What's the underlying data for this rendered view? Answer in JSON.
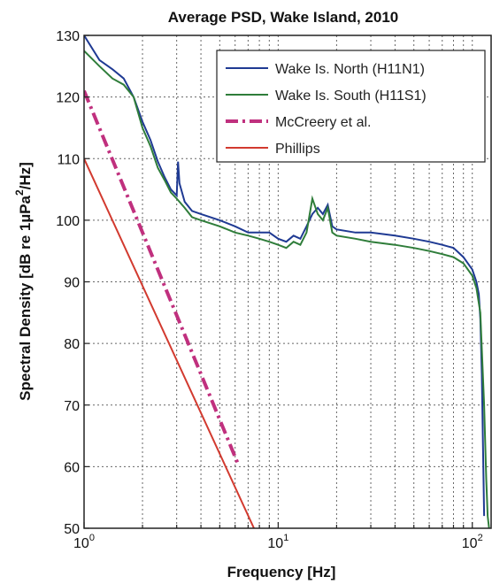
{
  "chart_data": {
    "type": "line",
    "title": "Average PSD, Wake Island, 2010",
    "xlabel": "Frequency [Hz]",
    "ylabel": "Spectral Density [dB re 1µPa²/Hz]",
    "xscale": "log",
    "xlim": [
      1,
      125
    ],
    "ylim": [
      50,
      130
    ],
    "x_ticks": [
      {
        "value": 1,
        "label": "10",
        "exp": "0"
      },
      {
        "value": 10,
        "label": "10",
        "exp": "1"
      },
      {
        "value": 100,
        "label": "10",
        "exp": "2"
      }
    ],
    "y_ticks": [
      50,
      60,
      70,
      80,
      90,
      100,
      110,
      120,
      130
    ],
    "grid": true,
    "legend_position": "top-right",
    "series": [
      {
        "name": "Wake Is. North (H11N1)",
        "color": "#1f3a93",
        "style": "solid",
        "x": [
          1.0,
          1.2,
          1.4,
          1.6,
          1.8,
          2.0,
          2.2,
          2.4,
          2.6,
          2.8,
          3.0,
          3.05,
          3.1,
          3.3,
          3.6,
          4.0,
          5.0,
          6.0,
          7.0,
          8.0,
          9.0,
          10.0,
          11.0,
          12.0,
          13.0,
          14.0,
          15.0,
          16.0,
          17.0,
          18.0,
          19.0,
          20.0,
          25.0,
          30.0,
          40.0,
          50.0,
          60.0,
          70.0,
          80.0,
          90.0,
          100.0,
          105.0,
          108.0,
          110.0,
          112.0,
          115.0
        ],
        "y": [
          130.0,
          126.0,
          124.5,
          123.0,
          120.0,
          116.0,
          113.0,
          109.5,
          107.0,
          105.0,
          104.0,
          109.5,
          106.0,
          103.0,
          101.5,
          101.0,
          100.0,
          99.0,
          98.0,
          98.0,
          98.0,
          97.0,
          96.5,
          97.5,
          97.0,
          99.0,
          101.0,
          102.0,
          101.0,
          102.5,
          99.0,
          98.5,
          98.0,
          98.0,
          97.5,
          97.0,
          96.5,
          96.0,
          95.5,
          94.0,
          92.0,
          90.0,
          88.0,
          84.0,
          75.0,
          52.0
        ]
      },
      {
        "name": "Wake Is. South (H11S1)",
        "color": "#2f7d3a",
        "style": "solid",
        "x": [
          1.0,
          1.2,
          1.4,
          1.6,
          1.8,
          2.0,
          2.2,
          2.4,
          2.6,
          2.8,
          3.0,
          3.3,
          3.6,
          4.0,
          5.0,
          6.0,
          7.0,
          8.0,
          9.0,
          10.0,
          11.0,
          12.0,
          13.0,
          14.0,
          15.0,
          16.0,
          17.0,
          18.0,
          19.0,
          20.0,
          25.0,
          30.0,
          40.0,
          50.0,
          60.0,
          70.0,
          80.0,
          90.0,
          100.0,
          105.0,
          110.0,
          115.0,
          118.0,
          120.0,
          122.0
        ],
        "y": [
          127.5,
          125.0,
          123.0,
          122.0,
          120.0,
          115.0,
          112.0,
          108.5,
          106.5,
          104.5,
          103.5,
          102.0,
          100.5,
          100.0,
          99.0,
          98.0,
          97.5,
          97.0,
          96.5,
          96.0,
          95.5,
          96.5,
          96.0,
          98.0,
          103.5,
          101.0,
          100.0,
          102.0,
          98.0,
          97.5,
          97.0,
          96.5,
          96.0,
          95.5,
          95.0,
          94.5,
          94.0,
          93.0,
          91.0,
          89.0,
          85.0,
          70.0,
          58.0,
          52.0,
          50.0
        ]
      },
      {
        "name": "McCreery et al.",
        "color": "#c0307e",
        "style": "dashdot",
        "x": [
          1.0,
          6.2
        ],
        "y": [
          121.0,
          60.5
        ]
      },
      {
        "name": "Phillips",
        "color": "#d23a2f",
        "style": "solid",
        "x": [
          1.0,
          7.5
        ],
        "y": [
          110.0,
          50.0
        ]
      }
    ]
  }
}
